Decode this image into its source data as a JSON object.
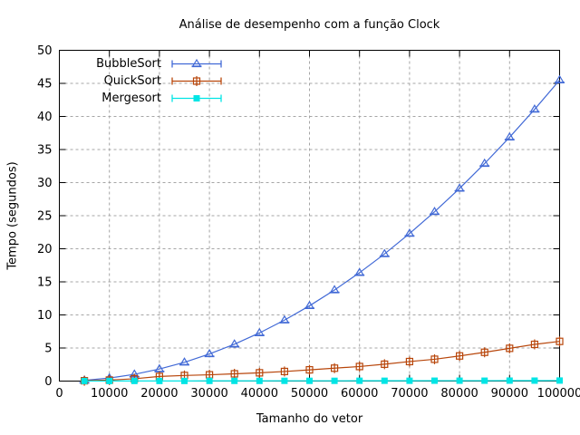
{
  "title": "Análise de desempenho com a função Clock",
  "chart_data": {
    "type": "line",
    "title": "Análise de desempenho com a função Clock",
    "xlabel": "Tamanho do vetor",
    "ylabel": "Tempo (segundos)",
    "xlim": [
      0,
      100000
    ],
    "ylim": [
      0,
      50
    ],
    "grid": true,
    "grid_color": "#a5a5a5",
    "axis_color": "#000000",
    "legend_position": "top-left",
    "x_ticks": [
      0,
      10000,
      20000,
      30000,
      40000,
      50000,
      60000,
      70000,
      80000,
      90000,
      100000
    ],
    "x_tick_labels": [
      "0",
      "10000",
      "20000",
      "30000",
      "40000",
      "50000",
      "60000",
      "70000",
      "80000",
      "90000",
      "100000"
    ],
    "y_ticks": [
      0,
      5,
      10,
      15,
      20,
      25,
      30,
      35,
      40,
      45,
      50
    ],
    "y_tick_labels": [
      "0",
      "5",
      "10",
      "15",
      "20",
      "25",
      "30",
      "35",
      "40",
      "45",
      "50"
    ],
    "x": [
      5000,
      10000,
      15000,
      20000,
      25000,
      30000,
      35000,
      40000,
      45000,
      50000,
      55000,
      60000,
      65000,
      70000,
      75000,
      80000,
      85000,
      90000,
      95000,
      100000
    ],
    "series": [
      {
        "name": "BubbleSort",
        "color": "#4169d6",
        "marker": "open-triangle",
        "values": [
          0.11,
          0.46,
          1.02,
          1.82,
          2.84,
          4.1,
          5.57,
          7.28,
          9.21,
          11.38,
          13.77,
          16.38,
          19.22,
          22.3,
          25.59,
          29.12,
          32.88,
          36.86,
          41.07,
          45.5
        ]
      },
      {
        "name": "QuickSort",
        "color": "#b8460b",
        "marker": "open-square",
        "values": [
          0.05,
          0.15,
          0.35,
          0.7,
          0.85,
          0.95,
          1.1,
          1.25,
          1.45,
          1.7,
          1.95,
          2.2,
          2.55,
          2.95,
          3.3,
          3.8,
          4.35,
          4.95,
          5.55,
          6.0
        ]
      },
      {
        "name": "Mergesort",
        "color": "#00e5e5",
        "marker": "filled-square",
        "values": [
          0.01,
          0.01,
          0.02,
          0.02,
          0.02,
          0.03,
          0.03,
          0.03,
          0.04,
          0.04,
          0.04,
          0.05,
          0.05,
          0.05,
          0.06,
          0.06,
          0.06,
          0.07,
          0.07,
          0.08
        ]
      }
    ]
  }
}
